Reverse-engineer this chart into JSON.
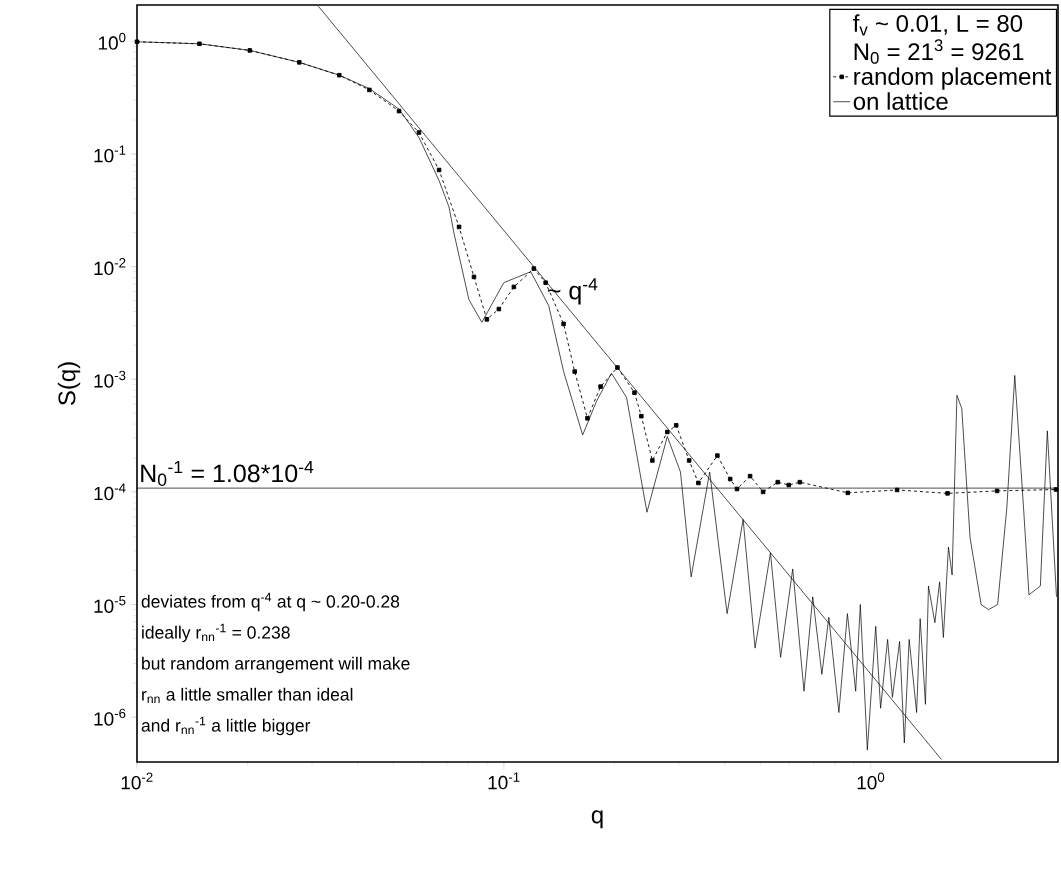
{
  "chart_data": {
    "type": "line",
    "xlabel": "q",
    "ylabel": "S(q)",
    "log": "xy",
    "xlim": [
      0.01,
      3.24
    ],
    "ylim": [
      4e-07,
      2.1
    ],
    "xticks": [
      {
        "value": 0.01,
        "label": "10$^{-2}$"
      },
      {
        "value": 0.1,
        "label": "10$^{-1}$"
      },
      {
        "value": 1,
        "label": "10$^{0}$"
      }
    ],
    "yticks": [
      {
        "value": 1e-06,
        "label": "10$^{-6}$"
      },
      {
        "value": 1e-05,
        "label": "10$^{-5}$"
      },
      {
        "value": 0.0001,
        "label": "10$^{-4}$"
      },
      {
        "value": 0.001,
        "label": "10$^{-3}$"
      },
      {
        "value": 0.01,
        "label": "10$^{-2}$"
      },
      {
        "value": 0.1,
        "label": "10$^{-1}$"
      },
      {
        "value": 1,
        "label": "10$^{0}$"
      }
    ],
    "legend": "top right",
    "legend_title": "f$_{v}$ ~ 0.01, L = 80",
    "series": [
      {
        "name": "random placement",
        "color": "#000000",
        "marker": "square",
        "line_style": "dashed",
        "x": [
          0.01,
          0.0148,
          0.0203,
          0.0277,
          0.0356,
          0.043,
          0.0518,
          0.0587,
          0.0666,
          0.0755,
          0.0829,
          0.0899,
          0.0969,
          0.1065,
          0.1207,
          0.13,
          0.1455,
          0.156,
          0.169,
          0.1835,
          0.204,
          0.227,
          0.237,
          0.254,
          0.279,
          0.295,
          0.32,
          0.339,
          0.382,
          0.414,
          0.432,
          0.469,
          0.509,
          0.558,
          0.598,
          0.641,
          0.866,
          1.18,
          1.62,
          2.21,
          3.2
        ],
        "values": [
          0.99,
          0.95,
          0.83,
          0.65,
          0.5,
          0.37,
          0.24,
          0.155,
          0.072,
          0.0225,
          0.0081,
          0.0034,
          0.0042,
          0.0066,
          0.0096,
          0.0072,
          0.0031,
          0.00117,
          0.00045,
          0.00086,
          0.00127,
          0.00076,
          0.00047,
          0.00019,
          0.00034,
          0.00039,
          0.00019,
          0.00012,
          0.00021,
          0.00013,
          0.000106,
          0.000138,
          0.0001,
          0.000122,
          0.000115,
          0.000122,
          9.8e-05,
          0.000104,
          9.7e-05,
          0.000102,
          0.000105
        ]
      },
      {
        "name": "on lattice",
        "color": "#000000",
        "marker": "none",
        "line_style": "solid",
        "x": [
          0.01,
          0.0148,
          0.0203,
          0.0277,
          0.0356,
          0.043,
          0.0518,
          0.0587,
          0.0666,
          0.0709,
          0.0731,
          0.0803,
          0.0871,
          0.1,
          0.1184,
          0.1325,
          0.1455,
          0.164,
          0.179,
          0.1965,
          0.216,
          0.2455,
          0.279,
          0.303,
          0.324,
          0.364,
          0.406,
          0.449,
          0.484,
          0.533,
          0.568,
          0.613,
          0.658,
          0.695,
          0.736,
          0.769,
          0.819,
          0.864,
          0.91,
          0.937,
          0.979,
          1.032,
          1.064,
          1.112,
          1.146,
          1.199,
          1.235,
          1.273,
          1.334,
          1.364,
          1.41,
          1.437,
          1.496,
          1.541,
          1.578,
          1.629,
          1.667,
          1.718,
          1.771,
          1.866,
          2.0,
          2.094,
          2.218,
          2.35,
          2.47,
          2.61,
          2.7,
          2.9,
          3.03,
          3.21
        ],
        "values": [
          0.99,
          0.95,
          0.83,
          0.65,
          0.5,
          0.38,
          0.25,
          0.14,
          0.058,
          0.0337,
          0.0199,
          0.0051,
          0.0032,
          0.0072,
          0.009,
          0.0045,
          0.00117,
          0.00032,
          0.00064,
          0.00113,
          0.00069,
          6.6e-05,
          0.00031,
          0.00015,
          1.76e-05,
          0.00015,
          8.3e-06,
          5.7e-05,
          4.1e-06,
          2.88e-05,
          3.4e-06,
          2.07e-05,
          1.7e-06,
          1.17e-05,
          2.4e-06,
          7.7e-06,
          1.1e-06,
          8.3e-06,
          1.7e-06,
          1e-05,
          5.1e-07,
          6.4e-06,
          1.2e-06,
          4.9e-06,
          1.5e-06,
          4.7e-06,
          5.9e-07,
          4.9e-06,
          1.1e-06,
          7.5e-06,
          1.3e-06,
          1.46e-05,
          6.9e-06,
          1.59e-05,
          5.1e-06,
          3.24e-05,
          1.83e-05,
          0.00072,
          0.00055,
          3.9e-05,
          1e-05,
          9e-06,
          1e-05,
          7.2e-05,
          0.00108,
          7.2e-05,
          1.22e-05,
          1.46e-05,
          0.000348,
          1.17e-05
        ]
      },
      {
        "type": "line",
        "color": "#000000",
        "marker": "none",
        "line_style": "solid",
        "x": [
          0.0312,
          1.56
        ],
        "values": [
          2.05,
          4.2e-07
        ]
      }
    ],
    "ref_lines": [
      {
        "axis": "y",
        "value": 0.000108,
        "label": "N$_{0}$$^{-1}$ = 1.08*10$^{-4}$",
        "color": "#000000"
      }
    ],
    "annotations": [
      "N$_{0}$ = 21$^{3}$ = 9261",
      {
        "text": "~ q$^{-4}$",
        "x": 0.13,
        "y": 0.0045
      },
      "deviates from q$^{-4}$ at q ~ 0.20-0.28",
      "ideally r$_{nn}$$^{-1}$ = 0.238",
      "but random arrangement will make",
      "r$_{nn}$ a little smaller than ideal",
      "and r$_{nn}$$^{-1}$ a little bigger"
    ]
  }
}
